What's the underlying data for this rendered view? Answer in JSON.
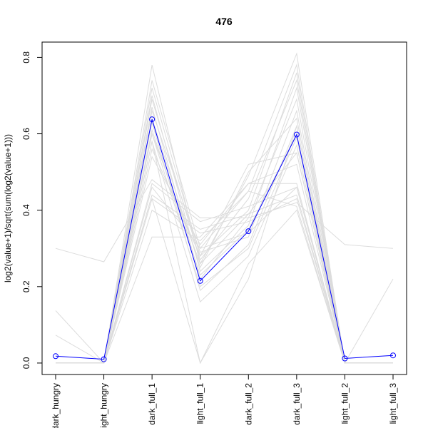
{
  "chart_data": {
    "type": "line",
    "title": "476",
    "xlabel": "",
    "ylabel": "log2(value+1)/sqrt(sum(log2(value+1)))",
    "categories": [
      "dark_hungry",
      "light_hungry",
      "dark_full_1",
      "light_full_1",
      "dark_full_2",
      "dark_full_3",
      "light_full_2",
      "light_full_3"
    ],
    "yticks": [
      "0.0",
      "0.2",
      "0.4",
      "0.6",
      "0.8"
    ],
    "ylim": [
      -0.03,
      0.84
    ],
    "grid": false,
    "highlight_color": "#0000ff",
    "background_color": "#dcdcdc",
    "series": [
      {
        "values": [
          0.018,
          0.01,
          0.638,
          0.215,
          0.345,
          0.598,
          0.012,
          0.02
        ]
      }
    ],
    "background_series": [
      {
        "values": [
          0.0,
          0.0,
          0.78,
          0.26,
          0.49,
          0.81,
          0.0,
          0.0
        ]
      },
      {
        "values": [
          0.0,
          0.0,
          0.74,
          0.3,
          0.45,
          0.78,
          0.0,
          0.0
        ]
      },
      {
        "values": [
          0.0,
          0.0,
          0.72,
          0.28,
          0.4,
          0.76,
          0.0,
          0.0
        ]
      },
      {
        "values": [
          0.0,
          0.0,
          0.7,
          0.24,
          0.36,
          0.72,
          0.0,
          0.0
        ]
      },
      {
        "values": [
          0.0,
          0.0,
          0.69,
          0.27,
          0.43,
          0.74,
          0.0,
          0.0
        ]
      },
      {
        "values": [
          0.0,
          0.0,
          0.67,
          0.22,
          0.38,
          0.69,
          0.0,
          0.0
        ]
      },
      {
        "values": [
          0.0,
          0.0,
          0.66,
          0.29,
          0.33,
          0.66,
          0.0,
          0.0
        ]
      },
      {
        "values": [
          0.0,
          0.0,
          0.64,
          0.25,
          0.5,
          0.64,
          0.0,
          0.0
        ]
      },
      {
        "values": [
          0.0,
          0.0,
          0.63,
          0.19,
          0.31,
          0.62,
          0.0,
          0.0
        ]
      },
      {
        "values": [
          0.0,
          0.0,
          0.61,
          0.23,
          0.35,
          0.6,
          0.0,
          0.0
        ]
      },
      {
        "values": [
          0.0,
          0.0,
          0.6,
          0.2,
          0.3,
          0.59,
          0.0,
          0.0
        ]
      },
      {
        "values": [
          0.0,
          0.0,
          0.58,
          0.16,
          0.28,
          0.57,
          0.0,
          0.0
        ]
      },
      {
        "values": [
          0.0,
          0.0,
          0.56,
          0.28,
          0.52,
          0.55,
          0.0,
          0.0
        ]
      },
      {
        "values": [
          0.0,
          0.0,
          0.54,
          0.31,
          0.47,
          0.52,
          0.0,
          0.0
        ]
      },
      {
        "values": [
          0.0,
          0.0,
          0.47,
          0.37,
          0.41,
          0.46,
          0.0,
          0.0
        ]
      },
      {
        "values": [
          0.0,
          0.0,
          0.44,
          0.35,
          0.39,
          0.44,
          0.0,
          0.0
        ]
      },
      {
        "values": [
          0.0,
          0.0,
          0.43,
          0.34,
          0.37,
          0.43,
          0.0,
          0.0
        ]
      },
      {
        "values": [
          0.0,
          0.0,
          0.4,
          0.32,
          0.45,
          0.41,
          0.0,
          0.0
        ]
      },
      {
        "values": [
          0.0,
          0.0,
          0.33,
          0.33,
          0.47,
          0.47,
          0.0,
          0.0
        ]
      },
      {
        "values": [
          0.0,
          0.0,
          0.46,
          0.3,
          0.34,
          0.46,
          0.0,
          0.0
        ]
      },
      {
        "values": [
          0.0,
          0.0,
          0.58,
          0.0,
          0.22,
          0.62,
          0.0,
          0.0
        ]
      },
      {
        "values": [
          0.3,
          0.265,
          0.48,
          0.38,
          0.38,
          0.42,
          0.31,
          0.3
        ]
      },
      {
        "values": [
          0.137,
          0.0,
          0.43,
          0.0,
          0.26,
          0.4,
          0.0,
          0.0
        ]
      },
      {
        "values": [
          0.073,
          0.0,
          0.6,
          0.26,
          0.39,
          0.55,
          0.0,
          0.22
        ]
      }
    ]
  }
}
